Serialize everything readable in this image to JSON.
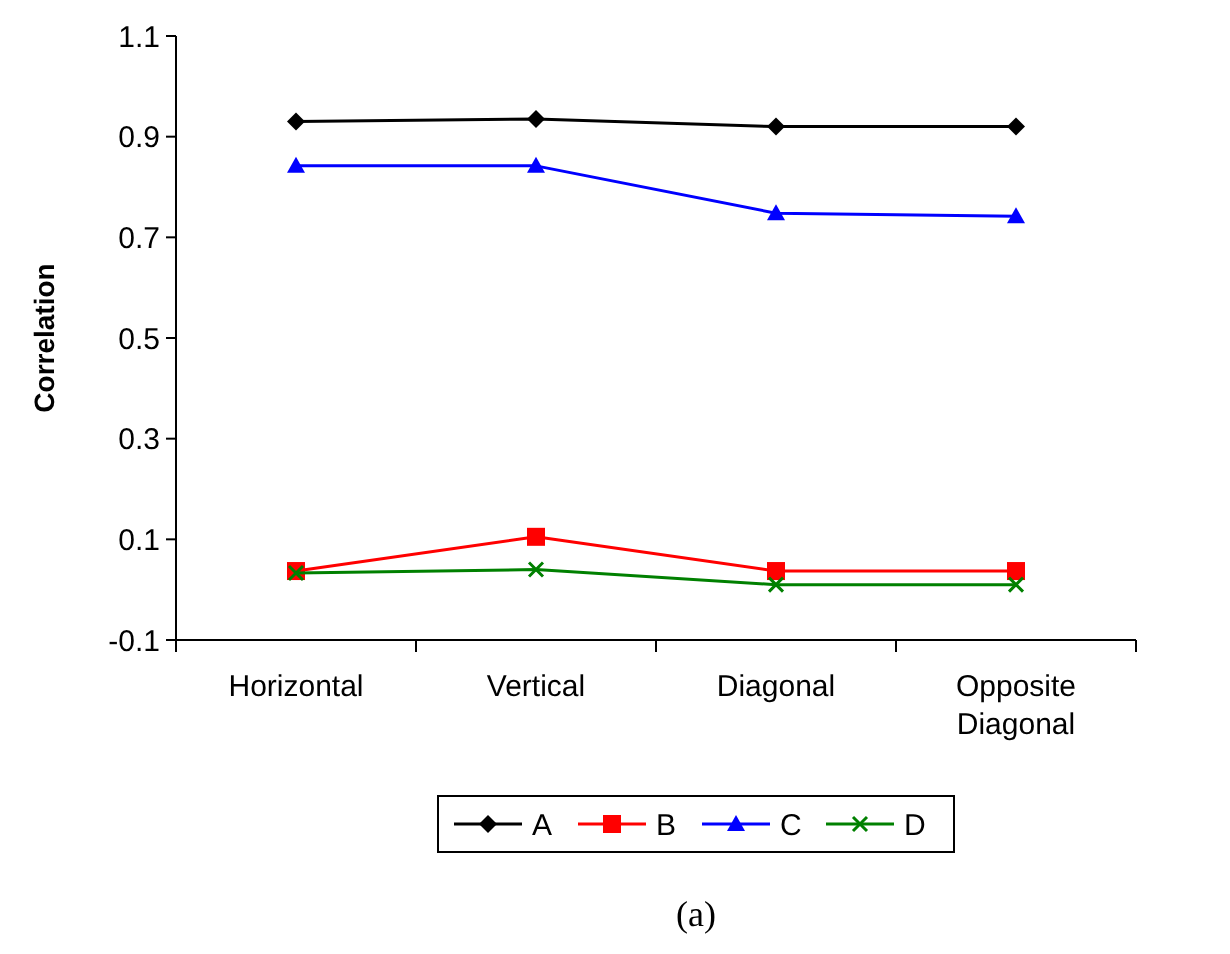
{
  "chart_data": {
    "type": "line",
    "ylabel": "Correlation",
    "categories": [
      "Horizontal",
      "Vertical",
      "Diagonal",
      "Opposite Diagonal"
    ],
    "series": [
      {
        "name": "A",
        "color": "#000000",
        "marker": "diamond",
        "values": [
          0.93,
          0.935,
          0.92,
          0.92
        ]
      },
      {
        "name": "B",
        "color": "#ff0000",
        "marker": "square",
        "values": [
          0.037,
          0.105,
          0.037,
          0.037
        ]
      },
      {
        "name": "C",
        "color": "#0000ff",
        "marker": "triangle",
        "values": [
          0.842,
          0.842,
          0.748,
          0.742
        ]
      },
      {
        "name": "D",
        "color": "#008000",
        "marker": "cross",
        "values": [
          0.033,
          0.04,
          0.01,
          0.01
        ]
      }
    ],
    "ylim": [
      -0.1,
      1.1
    ],
    "yticks": [
      -0.1,
      0.1,
      0.3,
      0.5,
      0.7,
      0.9,
      1.1
    ],
    "grid": false,
    "legend": "bottom",
    "line_style": "solid",
    "annotations": [
      "(a)"
    ]
  }
}
